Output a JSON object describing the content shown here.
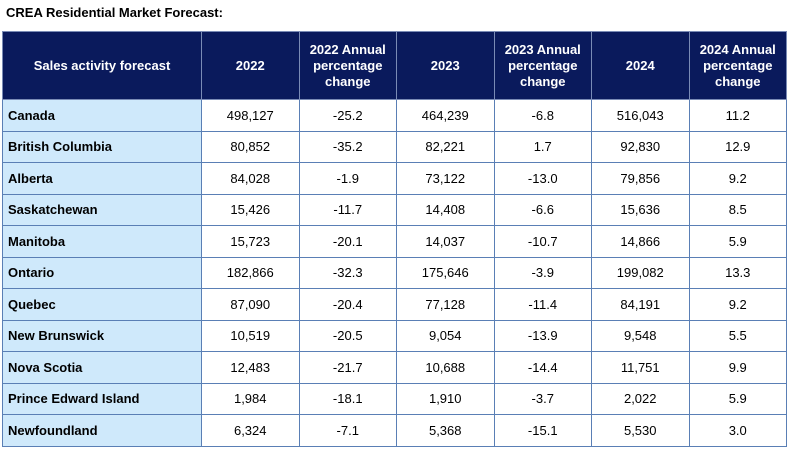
{
  "title": "CREA Residential Market Forecast:",
  "columns": [
    "Sales activity forecast",
    "2022",
    "2022 Annual percentage change",
    "2023",
    "2023 Annual percentage change",
    "2024",
    "2024 Annual percentage change"
  ],
  "rows": [
    {
      "name": "Canada",
      "y2022": "498,127",
      "pct2022": "-25.2",
      "y2023": "464,239",
      "pct2023": "-6.8",
      "y2024": "516,043",
      "pct2024": "11.2"
    },
    {
      "name": "British Columbia",
      "y2022": "80,852",
      "pct2022": "-35.2",
      "y2023": "82,221",
      "pct2023": "1.7",
      "y2024": "92,830",
      "pct2024": "12.9"
    },
    {
      "name": "Alberta",
      "y2022": "84,028",
      "pct2022": "-1.9",
      "y2023": "73,122",
      "pct2023": "-13.0",
      "y2024": "79,856",
      "pct2024": "9.2"
    },
    {
      "name": "Saskatchewan",
      "y2022": "15,426",
      "pct2022": "-11.7",
      "y2023": "14,408",
      "pct2023": "-6.6",
      "y2024": "15,636",
      "pct2024": "8.5"
    },
    {
      "name": "Manitoba",
      "y2022": "15,723",
      "pct2022": "-20.1",
      "y2023": "14,037",
      "pct2023": "-10.7",
      "y2024": "14,866",
      "pct2024": "5.9"
    },
    {
      "name": "Ontario",
      "y2022": "182,866",
      "pct2022": "-32.3",
      "y2023": "175,646",
      "pct2023": "-3.9",
      "y2024": "199,082",
      "pct2024": "13.3"
    },
    {
      "name": "Quebec",
      "y2022": "87,090",
      "pct2022": "-20.4",
      "y2023": "77,128",
      "pct2023": "-11.4",
      "y2024": "84,191",
      "pct2024": "9.2"
    },
    {
      "name": "New Brunswick",
      "y2022": "10,519",
      "pct2022": "-20.5",
      "y2023": "9,054",
      "pct2023": "-13.9",
      "y2024": "9,548",
      "pct2024": "5.5"
    },
    {
      "name": "Nova Scotia",
      "y2022": "12,483",
      "pct2022": "-21.7",
      "y2023": "10,688",
      "pct2023": "-14.4",
      "y2024": "11,751",
      "pct2024": "9.9"
    },
    {
      "name": "Prince Edward Island",
      "y2022": "1,984",
      "pct2022": "-18.1",
      "y2023": "1,910",
      "pct2023": "-3.7",
      "y2024": "2,022",
      "pct2024": "5.9"
    },
    {
      "name": "Newfoundland",
      "y2022": "6,324",
      "pct2022": "-7.1",
      "y2023": "5,368",
      "pct2023": "-15.1",
      "y2024": "5,530",
      "pct2024": "3.0"
    }
  ],
  "colors": {
    "header_bg": "#0a1a5c",
    "header_text": "#ffffff",
    "name_cell_bg": "#cfe9fb",
    "grid_line": "#5a7fb5"
  }
}
